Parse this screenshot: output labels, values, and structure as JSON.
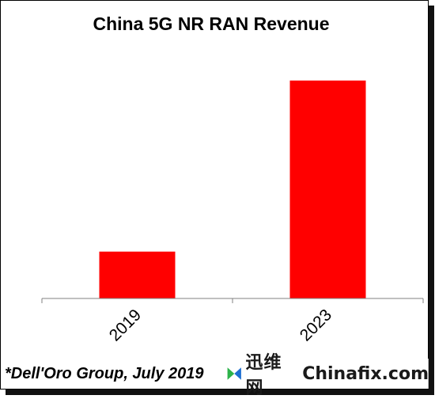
{
  "chart_data": {
    "type": "bar",
    "title": "China 5G NR RAN Revenue",
    "categories": [
      "2019",
      "2023"
    ],
    "values": [
      20,
      93
    ],
    "ylim": [
      0,
      100
    ],
    "bar_color": "#ff0000",
    "grid": false,
    "source_note": "*Dell'Oro Group, July 2019"
  },
  "watermark": {
    "text_cn": "迅维网",
    "text_en": "Chinafix.com",
    "logo_colors": [
      "#2db34a",
      "#1e6fd1"
    ]
  }
}
